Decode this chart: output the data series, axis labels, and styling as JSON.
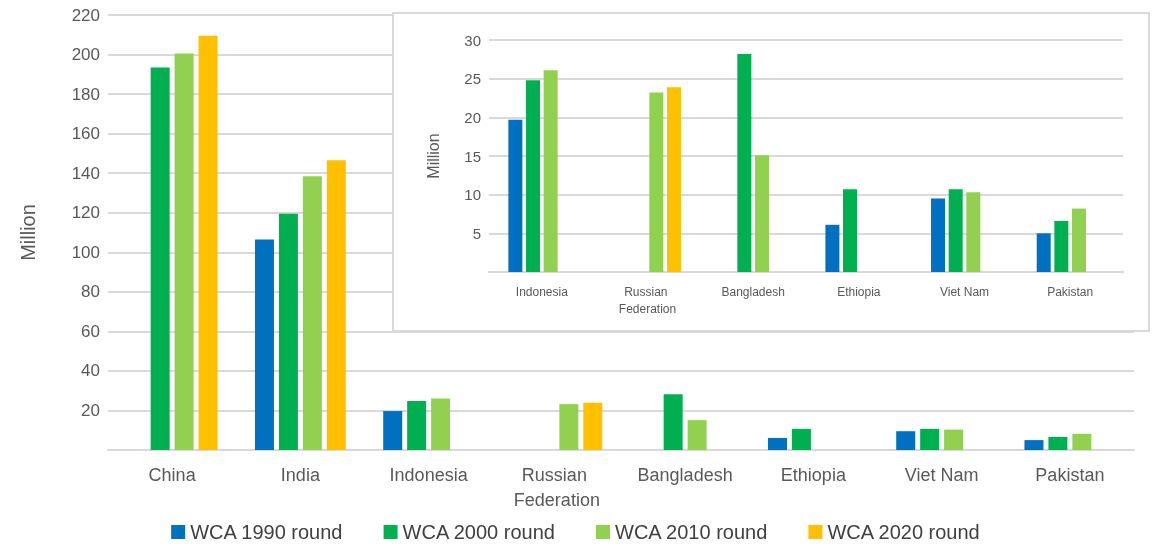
{
  "chart_data": [
    {
      "type": "bar",
      "ylabel": "Million",
      "categories": [
        "China",
        "India",
        "Indonesia",
        "Russian Federation",
        "Bangladesh",
        "Ethiopia",
        "Viet Nam",
        "Pakistan"
      ],
      "series": [
        {
          "name": "WCA 1990 round",
          "color": "#0070c0",
          "values": [
            null,
            106.5,
            19.7,
            null,
            null,
            6.1,
            9.5,
            5.0
          ]
        },
        {
          "name": "WCA 2000 round",
          "color": "#00b050",
          "values": [
            193.5,
            119.5,
            24.8,
            null,
            28.2,
            10.7,
            10.7,
            6.6
          ]
        },
        {
          "name": "WCA 2010 round",
          "color": "#92d050",
          "values": [
            200.5,
            138.5,
            26.1,
            23.2,
            15.1,
            null,
            10.3,
            8.2
          ]
        },
        {
          "name": "WCA 2020 round",
          "color": "#ffc000",
          "values": [
            209.5,
            146.5,
            null,
            23.9,
            null,
            null,
            null,
            null
          ]
        }
      ],
      "ylim": [
        0,
        220
      ],
      "yticks": [
        20,
        40,
        60,
        80,
        100,
        120,
        140,
        160,
        180,
        200,
        220
      ],
      "grid": "y",
      "legend": "bottom"
    },
    {
      "type": "bar",
      "ylabel": "Million",
      "categories": [
        "Indonesia",
        "Russian Federation",
        "Bangladesh",
        "Ethiopia",
        "Viet Nam",
        "Pakistan"
      ],
      "series": [
        {
          "color": "#0070c0",
          "values": [
            19.7,
            null,
            null,
            6.1,
            9.5,
            5.0
          ]
        },
        {
          "color": "#00b050",
          "values": [
            24.8,
            null,
            28.2,
            10.7,
            10.7,
            6.6
          ]
        },
        {
          "color": "#92d050",
          "values": [
            26.1,
            23.2,
            15.1,
            null,
            10.3,
            8.2
          ]
        },
        {
          "color": "#ffc000",
          "values": [
            null,
            23.9,
            null,
            null,
            null,
            null
          ]
        }
      ],
      "ylim": [
        0,
        30
      ],
      "yticks": [
        5,
        10,
        15,
        20,
        25,
        30
      ],
      "grid": "y"
    }
  ]
}
